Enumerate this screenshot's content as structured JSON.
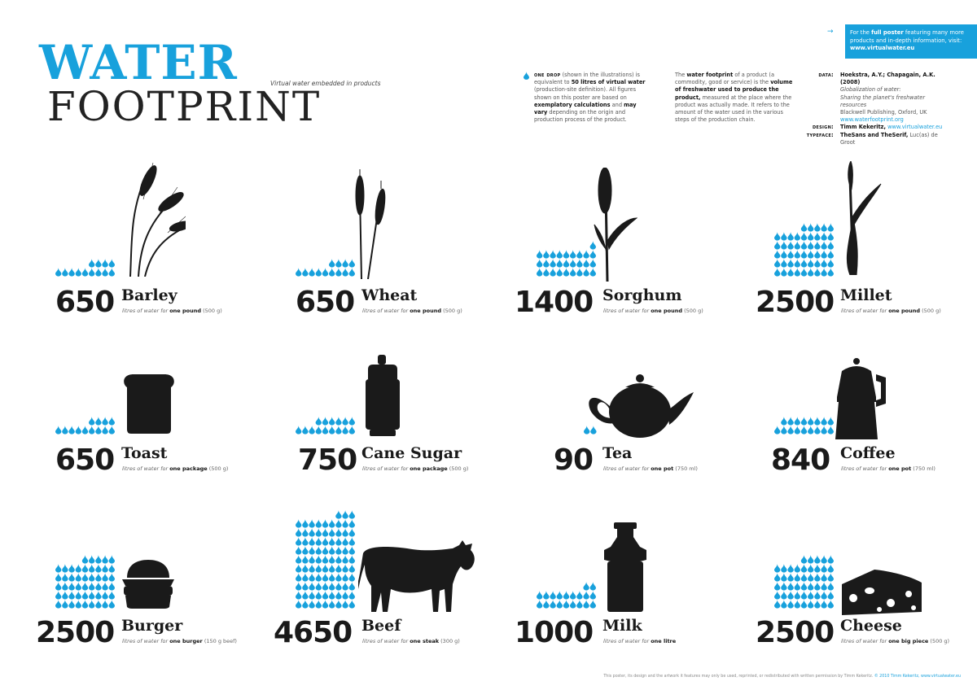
{
  "header": {
    "water": "WATER",
    "footprint": "FOOTPRINT",
    "subtitle": "Virtual water embedded in products"
  },
  "info": {
    "drop_lead": "one drop",
    "drop_1": "(shown in the illustrations) is equivalent to",
    "drop_2": "50 litres of virtual water",
    "drop_3": "(production-site definition). All figures shown on this poster are based on",
    "drop_4": "exemplatory calculations",
    "drop_5": "and",
    "drop_6": "may vary",
    "drop_7": "depending on the origin and production process of the product.",
    "fp_1": "The",
    "fp_2": "water footprint",
    "fp_3": "of a product (a commodity, good or service) is the",
    "fp_4": "volume of freshwater used to produce the product,",
    "fp_5": "measured at the place where the product was actually made. It refers to the amount of the water used in the various steps of the production chain."
  },
  "credits": {
    "data_label": "data:",
    "data_authors": "Hoekstra, A.Y.; Chapagain, A.K. (2008)",
    "data_title": "Globalization of water:",
    "data_subtitle": "Sharing the planet's freshwater resources",
    "data_publisher": "Blackwell Publishing, Oxford, UK",
    "data_link": "www.waterfootprint.org",
    "design_label": "design:",
    "design_value": "Timm Kekeritz,",
    "design_link": "www.virtualwater.eu",
    "typeface_label": "typeface:",
    "typeface_value": "TheSans and TheSerif,",
    "typeface_foundry": "Luc(as) de Groot"
  },
  "promo": {
    "t1": "For the",
    "t2": "full poster",
    "t3": "featuring many more products and in-depth information, visit:",
    "url": "www.virtualwater.eu"
  },
  "footer": {
    "text": "This poster, its design and the artwork it features may only be used, reprinted, or redistributed with written permission by Timm Kekeritz.",
    "copy": "© 2010 Timm Kekeritz, www.virtualwater.eu"
  },
  "colors": {
    "accent": "#18a1dc",
    "ink": "#1a1a1a"
  },
  "items": [
    {
      "value": "650",
      "name": "Barley",
      "pre": "litres of water for",
      "unit": "one pound",
      "note": "(500 g)",
      "icon": "barley-icon"
    },
    {
      "value": "650",
      "name": "Wheat",
      "pre": "litres of water for",
      "unit": "one pound",
      "note": "(500 g)",
      "icon": "wheat-icon"
    },
    {
      "value": "1400",
      "name": "Sorghum",
      "pre": "litres of water for",
      "unit": "one pound",
      "note": "(500 g)",
      "icon": "sorghum-icon"
    },
    {
      "value": "2500",
      "name": "Millet",
      "pre": "litres of water for",
      "unit": "one pound",
      "note": "(500 g)",
      "icon": "millet-icon"
    },
    {
      "value": "650",
      "name": "Toast",
      "pre": "litres of water for",
      "unit": "one package",
      "note": "(500 g)",
      "icon": "toast-icon"
    },
    {
      "value": "750",
      "name": "Cane Sugar",
      "pre": "litres of water for",
      "unit": "one package",
      "note": "(500 g)",
      "icon": "sugar-shaker-icon"
    },
    {
      "value": "90",
      "name": "Tea",
      "pre": "litres of water for",
      "unit": "one pot",
      "note": "(750 ml)",
      "icon": "teapot-icon"
    },
    {
      "value": "840",
      "name": "Coffee",
      "pre": "litres of water for",
      "unit": "one pot",
      "note": "(750 ml)",
      "icon": "coffee-maker-icon"
    },
    {
      "value": "2500",
      "name": "Burger",
      "pre": "litres of water for",
      "unit": "one burger",
      "note": "(150 g beef)",
      "icon": "burger-icon"
    },
    {
      "value": "4650",
      "name": "Beef",
      "pre": "litres of water for",
      "unit": "one steak",
      "note": "(300 g)",
      "icon": "cow-icon"
    },
    {
      "value": "1000",
      "name": "Milk",
      "pre": "litres of water for",
      "unit": "one litre",
      "note": "",
      "icon": "milk-can-icon"
    },
    {
      "value": "2500",
      "name": "Cheese",
      "pre": "litres of water for",
      "unit": "one big piece",
      "note": "(500 g)",
      "icon": "cheese-icon"
    }
  ]
}
